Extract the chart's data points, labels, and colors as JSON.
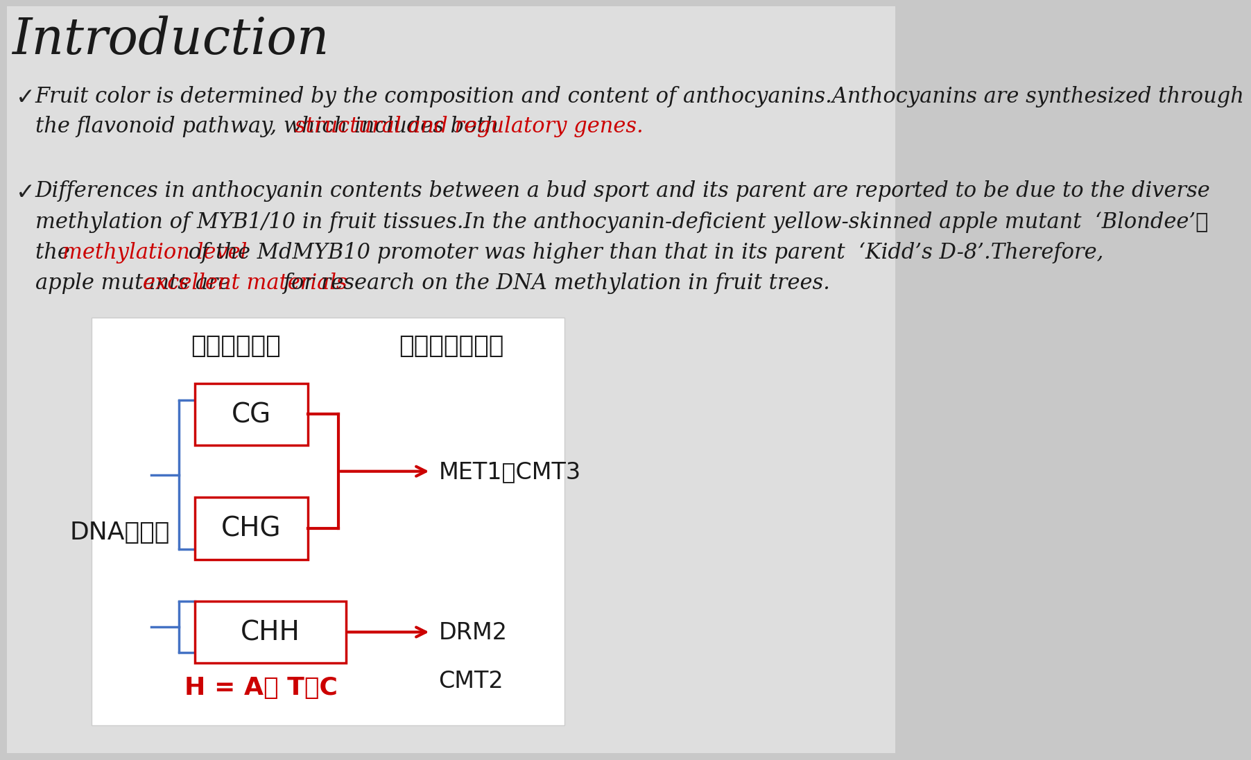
{
  "bg_color": "#d8d8d8",
  "slide_bg": "#f0f0f0",
  "title": "Introduction",
  "bullet1_black": "Fruit color is determined by the composition and content of anthocyanins.Anthocyanins are synthesized through\nthe flavonoid pathway, which includes both ",
  "bullet1_red": "structural and regulatory genes.",
  "bullet2_black1": "Differences in anthocyanin contents between a bud sport and its parent are reported to be due to the diverse\nmethylation of MYB1/10 in fruit tissues.In the anthocyanin-deficient yellow-skinned apple mutant ‘Blondee’，\nthe ",
  "bullet2_red1": "methylation level",
  "bullet2_black2": " of the MdMYB10 promoter was higher than that in its parent ‘Kidd’s D-8’.Therefore,\napple mutants are ",
  "bullet2_red2": "excellent materials",
  "bullet2_black3": " for research on the DNA methylation in fruit trees.",
  "diagram_label_left": "DNA甲基化",
  "diagram_label_top1": "三种碱基序列",
  "diagram_label_top2": "四种甲基转移酶",
  "box1_label": "CG",
  "box2_label": "CHG",
  "box3_label": "CHH",
  "arrow1_label": "MET1和CMT3",
  "arrow2_label": "DRM2",
  "arrow3_label": "CMT2",
  "footnote": "H = A， T或C",
  "red_color": "#cc0000",
  "blue_color": "#4472c4",
  "black_color": "#000000",
  "box_red": "#cc0000",
  "white_color": "#ffffff"
}
